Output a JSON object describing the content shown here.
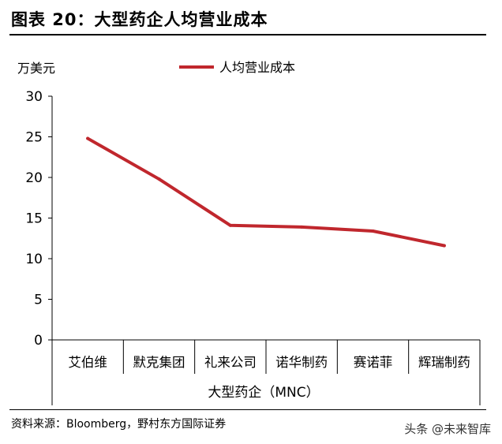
{
  "figure": {
    "title": "图表 20：大型药企人均营业成本",
    "source": "资料来源：Bloomberg，野村东方国际证券",
    "watermark": "头条 @未来智库"
  },
  "chart_data": {
    "type": "line",
    "ylabel": "万美元",
    "xlabel": "大型药企（MNC）",
    "ylim": [
      0,
      30
    ],
    "yticks": [
      0,
      5,
      10,
      15,
      20,
      25,
      30
    ],
    "grid": false,
    "legend_position": "top",
    "categories": [
      "艾伯维",
      "默克集团",
      "礼来公司",
      "诺华制药",
      "赛诺菲",
      "辉瑞制药"
    ],
    "series": [
      {
        "name": "人均营业成本",
        "color": "#c0272d",
        "values": [
          24.8,
          19.8,
          14.1,
          13.9,
          13.4,
          11.6
        ]
      }
    ]
  }
}
